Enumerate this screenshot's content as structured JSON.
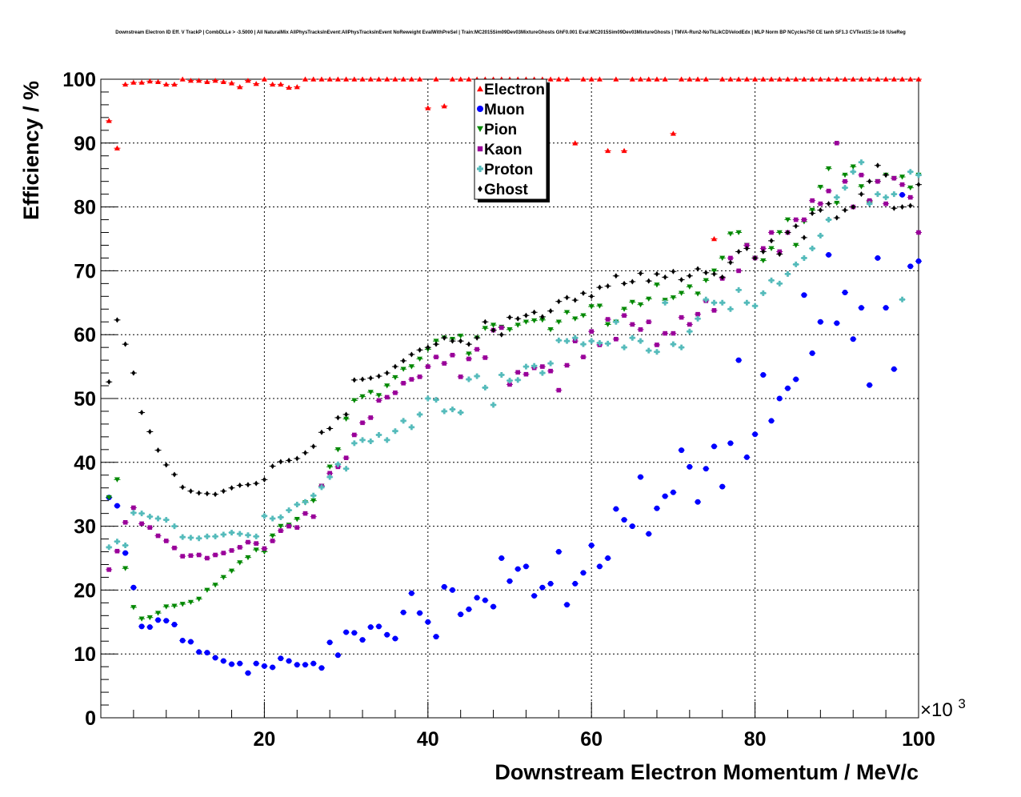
{
  "chart_data": {
    "type": "scatter",
    "title": "Downstream Electron ID Eff. V TrackP | CombDLLe > -3.5000 | All NaturalMix AllPhysTracksInEvent:AllPhysTracksInEvent NoReweight EvalWithPreSel | Train:MC2015Sim09Dev03MixtureGhosts GhF0.001 Eval:MC2015Sim09Dev03MixtureGhosts | TMVA-Run2-NoTkLikCDVelodEdx | MLP Norm BP NCycles750 CE tanh SF1.3 CVTest15:1e-16 !UseReg",
    "xlabel": "Downstream Electron Momentum / MeV/c",
    "ylabel": "Efficiency / %",
    "x_multiplier_label": "×10",
    "x_multiplier_exponent": "3",
    "xlim": [
      0,
      100
    ],
    "ylim": [
      0,
      100
    ],
    "xticks": [
      20,
      40,
      60,
      80,
      100
    ],
    "yticks": [
      0,
      10,
      20,
      30,
      40,
      50,
      60,
      70,
      80,
      90,
      100
    ],
    "grid": true,
    "legend_position": "top-center",
    "x": [
      1,
      2,
      3,
      4,
      5,
      6,
      7,
      8,
      9,
      10,
      11,
      12,
      13,
      14,
      15,
      16,
      17,
      18,
      19,
      20,
      21,
      22,
      23,
      24,
      25,
      26,
      27,
      28,
      29,
      30,
      31,
      32,
      33,
      34,
      35,
      36,
      37,
      38,
      39,
      40,
      41,
      42,
      43,
      44,
      45,
      46,
      47,
      48,
      49,
      50,
      51,
      52,
      53,
      54,
      55,
      56,
      57,
      58,
      59,
      60,
      61,
      62,
      63,
      64,
      65,
      66,
      67,
      68,
      69,
      70,
      71,
      72,
      73,
      74,
      75,
      76,
      77,
      78,
      79,
      80,
      81,
      82,
      83,
      84,
      85,
      86,
      87,
      88,
      89,
      90,
      91,
      92,
      93,
      94,
      95,
      96,
      97,
      98,
      99,
      100
    ],
    "series": [
      {
        "name": "Electron",
        "color": "#ff0000",
        "marker": "triangle-up",
        "values": [
          93.5,
          89.2,
          99.2,
          99.5,
          99.5,
          99.7,
          99.6,
          99.2,
          99.2,
          100,
          99.8,
          99.8,
          99.6,
          99.8,
          99.6,
          99.4,
          98.8,
          99.8,
          99.3,
          100,
          99.2,
          99.2,
          98.7,
          98.8,
          100,
          100,
          100,
          100,
          100,
          100,
          100,
          100,
          100,
          100,
          100,
          100,
          100,
          100,
          100,
          95.5,
          100,
          95.8,
          100,
          100,
          100,
          100,
          100,
          100,
          100,
          100,
          100,
          100,
          100,
          100,
          100,
          100,
          100,
          90.0,
          100,
          100,
          100,
          88.8,
          100,
          88.8,
          100,
          100,
          100,
          100,
          100,
          91.5,
          100,
          100,
          100,
          100,
          75.0,
          100,
          100,
          100,
          100,
          100,
          100,
          100,
          100,
          100,
          100,
          100,
          100,
          100,
          100,
          100,
          100,
          100,
          100,
          100,
          100,
          100,
          100,
          100,
          100,
          100
        ]
      },
      {
        "name": "Muon",
        "color": "#0000ff",
        "marker": "circle",
        "values": [
          34.5,
          33.2,
          25.8,
          20.4,
          14.3,
          14.2,
          15.3,
          15.2,
          14.6,
          12.1,
          11.9,
          10.3,
          10.2,
          9.4,
          8.9,
          8.4,
          8.5,
          7.0,
          8.5,
          8.1,
          7.9,
          9.3,
          8.9,
          8.3,
          8.3,
          8.5,
          7.8,
          11.8,
          9.8,
          13.4,
          13.3,
          12.2,
          14.2,
          14.3,
          13.0,
          12.4,
          16.5,
          19.5,
          16.4,
          15.0,
          12.7,
          20.5,
          20.0,
          16.2,
          17.0,
          18.8,
          18.4,
          17.4,
          25.0,
          21.4,
          23.3,
          23.7,
          19.1,
          20.4,
          21.0,
          26.0,
          17.7,
          21.0,
          22.7,
          27.0,
          23.7,
          25.0,
          32.7,
          31.0,
          30.0,
          37.7,
          28.8,
          32.8,
          34.7,
          35.3,
          41.9,
          39.3,
          33.8,
          39.0,
          42.5,
          36.2,
          43.0,
          56.0,
          40.8,
          44.4,
          53.7,
          46.5,
          50.0,
          51.6,
          53.0,
          66.2,
          57.1,
          62.0,
          72.5,
          61.8,
          66.6,
          59.3,
          64.2,
          52.1,
          72.0,
          64.2,
          54.6,
          81.9,
          70.7,
          71.5
        ]
      },
      {
        "name": "Pion",
        "color": "#008800",
        "marker": "triangle-down",
        "values": [
          34.5,
          37.3,
          23.4,
          17.3,
          15.5,
          15.7,
          16.4,
          17.4,
          17.5,
          17.8,
          18.1,
          18.6,
          20.0,
          20.8,
          22.0,
          23.0,
          24.3,
          25.1,
          26.3,
          26.0,
          28.5,
          30.0,
          30.2,
          31.1,
          33.7,
          34.0,
          36.3,
          39.3,
          42.0,
          46.8,
          49.7,
          50.3,
          51.0,
          50.5,
          52.0,
          53.3,
          54.6,
          55.0,
          56.2,
          57.7,
          59.0,
          59.5,
          59.3,
          59.8,
          57.0,
          59.5,
          61.0,
          61.5,
          61.2,
          60.8,
          61.5,
          62.0,
          62.2,
          62.3,
          60.8,
          62.0,
          63.5,
          62.5,
          63.0,
          64.4,
          64.5,
          61.6,
          62.0,
          64.0,
          65.1,
          64.7,
          65.6,
          67.8,
          65.4,
          65.8,
          66.5,
          67.5,
          66.4,
          68.5,
          70.0,
          72.0,
          75.8,
          76.0,
          74.0,
          72.0,
          71.6,
          73.5,
          76.0,
          78.0,
          74.0,
          77.7,
          79.5,
          83.1,
          86.0,
          80.6,
          85.0,
          86.3,
          83.2,
          80.8,
          84.0,
          85.0,
          84.5,
          84.7,
          83.0,
          85.0
        ]
      },
      {
        "name": "Kaon",
        "color": "#990099",
        "marker": "square",
        "values": [
          23.2,
          26.1,
          30.6,
          32.9,
          30.4,
          29.8,
          28.5,
          27.7,
          26.6,
          25.3,
          25.4,
          25.5,
          25.0,
          25.5,
          25.8,
          26.2,
          26.7,
          27.5,
          27.3,
          26.5,
          27.7,
          29.3,
          30.0,
          29.8,
          32.0,
          31.5,
          36.3,
          38.3,
          39.3,
          40.7,
          44.3,
          46.2,
          47.0,
          49.7,
          50.2,
          50.9,
          52.4,
          53.0,
          53.4,
          55.0,
          56.5,
          55.5,
          56.8,
          53.4,
          56.2,
          57.7,
          56.4,
          60.7,
          61.1,
          52.2,
          54.1,
          53.8,
          54.8,
          55.0,
          54.3,
          51.3,
          55.2,
          59.0,
          56.5,
          60.5,
          58.4,
          62.4,
          59.3,
          63.0,
          61.6,
          60.8,
          62.0,
          58.4,
          60.2,
          60.2,
          62.7,
          61.6,
          63.2,
          65.3,
          63.8,
          68.8,
          72.0,
          70.0,
          74.0,
          72.0,
          73.5,
          76.0,
          73.0,
          76.0,
          78.0,
          78.0,
          81.0,
          80.5,
          82.5,
          90.0,
          84.0,
          80.0,
          85.0,
          81.0,
          84.0,
          80.5,
          84.5,
          83.5,
          81.5,
          76.0
        ]
      },
      {
        "name": "Proton",
        "color": "#55bbbb",
        "marker": "cross",
        "values": [
          26.7,
          27.6,
          27.0,
          32.1,
          32.0,
          31.5,
          31.2,
          31.0,
          30.0,
          28.3,
          28.2,
          28.1,
          28.4,
          28.4,
          28.7,
          29.0,
          28.8,
          28.6,
          28.4,
          31.6,
          31.2,
          31.4,
          32.5,
          33.4,
          33.8,
          34.8,
          36.1,
          37.7,
          39.7,
          39.0,
          43.0,
          43.5,
          43.3,
          44.3,
          43.5,
          44.9,
          46.5,
          45.5,
          47.5,
          50.0,
          49.8,
          48.0,
          48.3,
          47.8,
          53.0,
          53.5,
          51.7,
          49.0,
          53.7,
          52.8,
          52.9,
          55.0,
          55.1,
          54.0,
          55.5,
          59.1,
          59.0,
          59.5,
          58.5,
          59.0,
          58.7,
          58.6,
          62.0,
          58.0,
          59.5,
          59.0,
          57.5,
          57.3,
          65.0,
          58.5,
          58.0,
          60.5,
          62.5,
          65.5,
          65.0,
          65.0,
          64.0,
          67.0,
          65.0,
          64.5,
          66.5,
          68.5,
          68.0,
          69.5,
          71.0,
          72.0,
          73.5,
          75.5,
          78.0,
          81.5,
          83.0,
          85.5,
          87.0,
          80.5,
          82.0,
          81.5,
          82.0,
          65.5,
          85.5,
          85.0
        ]
      },
      {
        "name": "Ghost",
        "color": "#000000",
        "marker": "diamond",
        "values": [
          52.6,
          62.3,
          58.5,
          54.0,
          47.8,
          44.8,
          41.9,
          39.6,
          38.1,
          36.1,
          35.5,
          35.2,
          35.1,
          35.0,
          35.5,
          36.0,
          36.4,
          36.5,
          36.7,
          37.3,
          39.4,
          40.1,
          40.3,
          40.6,
          41.5,
          42.5,
          44.7,
          45.3,
          47.0,
          47.5,
          52.9,
          53.0,
          53.2,
          53.5,
          54.0,
          55.0,
          55.9,
          56.9,
          57.6,
          58.0,
          58.5,
          59.5,
          59.0,
          59.0,
          58.5,
          59.5,
          62.0,
          60.7,
          60.0,
          62.7,
          62.5,
          63.0,
          63.5,
          62.8,
          63.7,
          65.2,
          65.8,
          65.4,
          66.5,
          66.0,
          67.4,
          67.6,
          69.2,
          68.0,
          68.3,
          69.6,
          68.4,
          69.5,
          69.0,
          69.9,
          68.6,
          69.2,
          70.3,
          69.7,
          69.5,
          69.0,
          71.3,
          73.0,
          73.5,
          72.0,
          73.0,
          74.7,
          72.6,
          76.0,
          77.0,
          75.2,
          79.0,
          79.5,
          80.5,
          78.3,
          79.5,
          80.0,
          82.0,
          84.0,
          86.5,
          85.0,
          79.8,
          80.0,
          80.2,
          83.5
        ]
      }
    ]
  }
}
